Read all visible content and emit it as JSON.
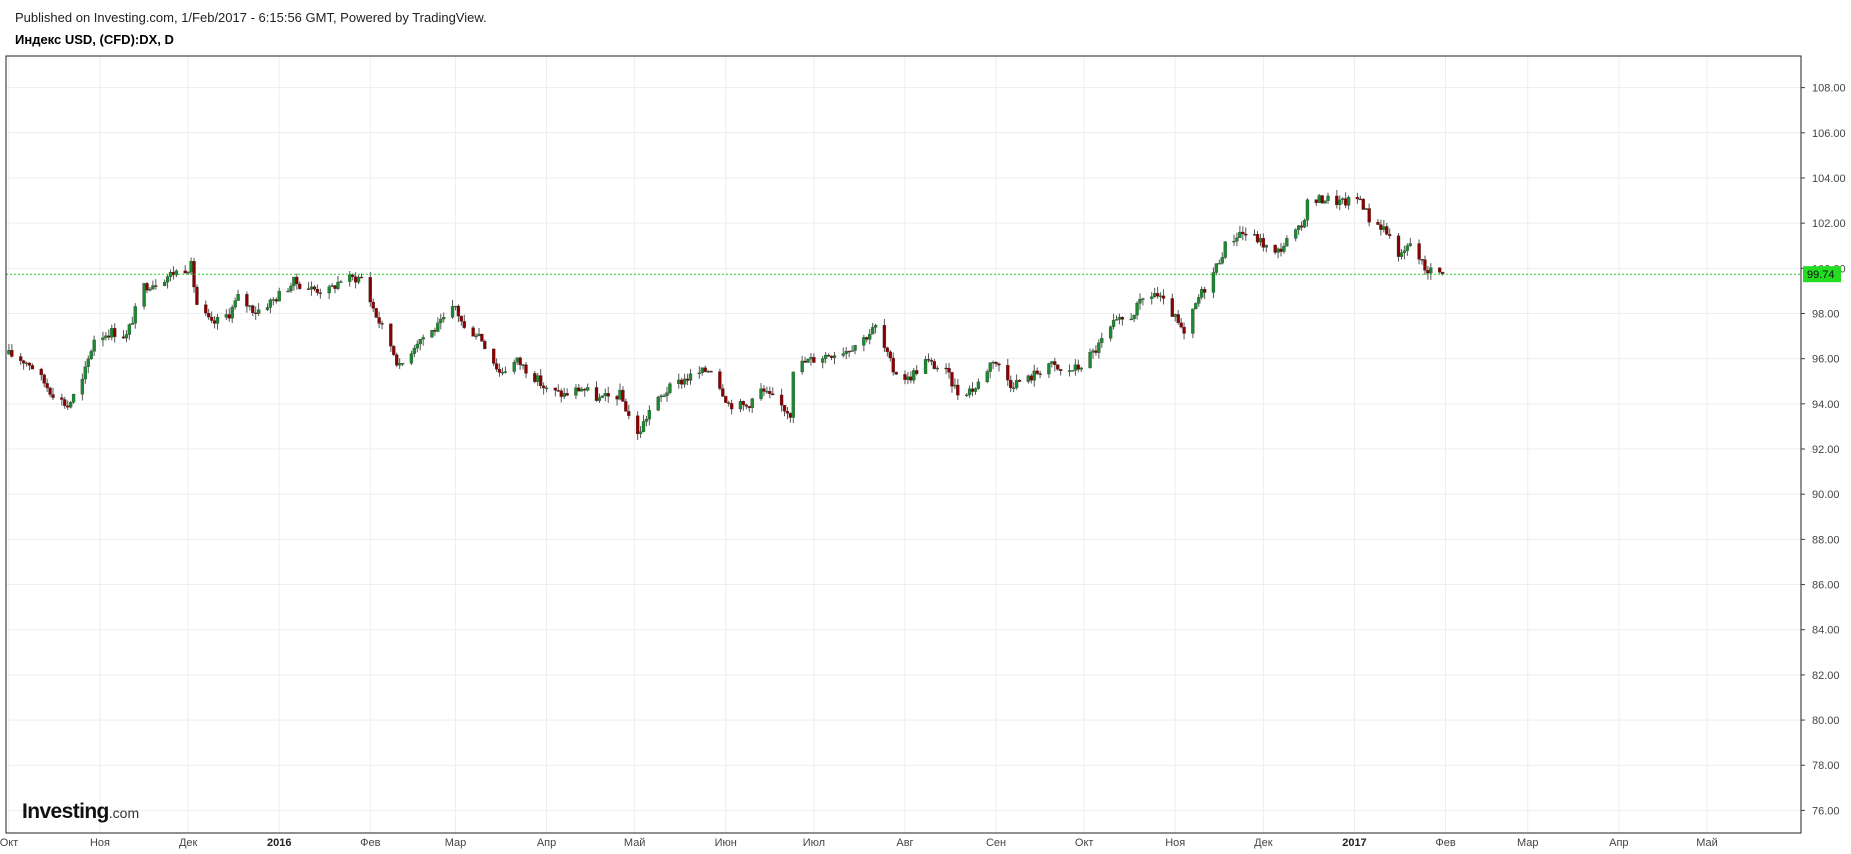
{
  "header": {
    "published": "Published on Investing.com, 1/Feb/2017 - 6:15:56 GMT, Powered by TradingView.",
    "symbol": "Индекс USD, (CFD):DX, D"
  },
  "logo": {
    "brand": "Investing",
    "domain": ".com"
  },
  "colors": {
    "up": "#1a8a2e",
    "down": "#8b0000",
    "wick": "#555555",
    "grid": "#eeeeee",
    "last_line": "#22cc22",
    "last_label_bg": "#22dd22",
    "frame": "#222222"
  },
  "chart_data": {
    "type": "candlestick",
    "title": "Индекс USD, (CFD):DX, D",
    "last_price": 99.74,
    "last_price_label": "99.74",
    "ylim": [
      75.0,
      109.4
    ],
    "y_ticks": [
      "76.00",
      "78.00",
      "80.00",
      "82.00",
      "84.00",
      "86.00",
      "88.00",
      "90.00",
      "92.00",
      "94.00",
      "96.00",
      "98.00",
      "100.00",
      "102.00",
      "104.00",
      "106.00",
      "108.00"
    ],
    "x_ticks": [
      {
        "label": "Окт",
        "date": "2015-10-01"
      },
      {
        "label": "Ноя",
        "date": "2015-11-01"
      },
      {
        "label": "Дек",
        "date": "2015-12-01"
      },
      {
        "label": "2016",
        "date": "2016-01-01",
        "bold": true
      },
      {
        "label": "Фев",
        "date": "2016-02-01"
      },
      {
        "label": "Мар",
        "date": "2016-03-01"
      },
      {
        "label": "Апр",
        "date": "2016-04-01"
      },
      {
        "label": "Май",
        "date": "2016-05-01"
      },
      {
        "label": "Июн",
        "date": "2016-06-01"
      },
      {
        "label": "Июл",
        "date": "2016-07-01"
      },
      {
        "label": "Авг",
        "date": "2016-08-01"
      },
      {
        "label": "Сен",
        "date": "2016-09-01"
      },
      {
        "label": "Окт",
        "date": "2016-10-01"
      },
      {
        "label": "Ноя",
        "date": "2016-11-01"
      },
      {
        "label": "Дек",
        "date": "2016-12-01"
      },
      {
        "label": "2017",
        "date": "2017-01-01",
        "bold": true
      },
      {
        "label": "Фев",
        "date": "2017-02-01"
      },
      {
        "label": "Мар",
        "date": "2017-03-01"
      },
      {
        "label": "Апр",
        "date": "2017-04-01"
      },
      {
        "label": "Май",
        "date": "2017-05-01"
      }
    ],
    "close_by_date": [
      [
        "2015-10-01",
        96.2
      ],
      [
        "2015-10-08",
        95.8
      ],
      [
        "2015-10-15",
        94.6
      ],
      [
        "2015-10-21",
        93.9
      ],
      [
        "2015-10-26",
        95.0
      ],
      [
        "2015-10-30",
        96.9
      ],
      [
        "2015-11-05",
        97.2
      ],
      [
        "2015-11-10",
        97.0
      ],
      [
        "2015-11-16",
        99.2
      ],
      [
        "2015-11-20",
        99.4
      ],
      [
        "2015-11-26",
        99.8
      ],
      [
        "2015-12-02",
        100.1
      ],
      [
        "2015-12-04",
        98.4
      ],
      [
        "2015-12-09",
        97.5
      ],
      [
        "2015-12-15",
        98.0
      ],
      [
        "2015-12-18",
        98.7
      ],
      [
        "2015-12-24",
        98.1
      ],
      [
        "2015-12-30",
        98.6
      ],
      [
        "2016-01-06",
        99.4
      ],
      [
        "2016-01-12",
        99.1
      ],
      [
        "2016-01-18",
        99.0
      ],
      [
        "2016-01-22",
        99.5
      ],
      [
        "2016-01-29",
        99.6
      ],
      [
        "2016-02-03",
        97.9
      ],
      [
        "2016-02-08",
        96.6
      ],
      [
        "2016-02-11",
        95.6
      ],
      [
        "2016-02-17",
        96.8
      ],
      [
        "2016-02-24",
        97.4
      ],
      [
        "2016-03-01",
        98.3
      ],
      [
        "2016-03-04",
        97.3
      ],
      [
        "2016-03-09",
        97.1
      ],
      [
        "2016-03-16",
        95.4
      ],
      [
        "2016-03-22",
        95.9
      ],
      [
        "2016-03-28",
        95.2
      ],
      [
        "2016-04-01",
        94.6
      ],
      [
        "2016-04-07",
        94.4
      ],
      [
        "2016-04-13",
        94.7
      ],
      [
        "2016-04-19",
        94.2
      ],
      [
        "2016-04-26",
        94.4
      ],
      [
        "2016-05-02",
        92.6
      ],
      [
        "2016-05-06",
        93.7
      ],
      [
        "2016-05-12",
        94.6
      ],
      [
        "2016-05-18",
        95.1
      ],
      [
        "2016-05-24",
        95.4
      ],
      [
        "2016-05-27",
        95.6
      ],
      [
        "2016-06-02",
        94.0
      ],
      [
        "2016-06-08",
        93.9
      ],
      [
        "2016-06-13",
        94.6
      ],
      [
        "2016-06-17",
        94.2
      ],
      [
        "2016-06-23",
        93.6
      ],
      [
        "2016-06-24",
        95.6
      ],
      [
        "2016-06-29",
        95.9
      ],
      [
        "2016-07-06",
        96.2
      ],
      [
        "2016-07-12",
        96.4
      ],
      [
        "2016-07-18",
        96.9
      ],
      [
        "2016-07-22",
        97.4
      ],
      [
        "2016-07-28",
        95.5
      ],
      [
        "2016-08-02",
        95.1
      ],
      [
        "2016-08-08",
        95.9
      ],
      [
        "2016-08-15",
        95.4
      ],
      [
        "2016-08-19",
        94.5
      ],
      [
        "2016-08-25",
        94.7
      ],
      [
        "2016-08-31",
        96.0
      ],
      [
        "2016-09-06",
        94.9
      ],
      [
        "2016-09-12",
        95.1
      ],
      [
        "2016-09-19",
        95.8
      ],
      [
        "2016-09-23",
        95.4
      ],
      [
        "2016-09-29",
        95.6
      ],
      [
        "2016-10-05",
        96.4
      ],
      [
        "2016-10-11",
        97.5
      ],
      [
        "2016-10-17",
        97.9
      ],
      [
        "2016-10-21",
        98.6
      ],
      [
        "2016-10-25",
        98.9
      ],
      [
        "2016-10-31",
        98.0
      ],
      [
        "2016-11-04",
        97.0
      ],
      [
        "2016-11-09",
        98.7
      ],
      [
        "2016-11-14",
        99.8
      ],
      [
        "2016-11-18",
        101.0
      ],
      [
        "2016-11-23",
        101.6
      ],
      [
        "2016-11-29",
        101.3
      ],
      [
        "2016-12-05",
        100.6
      ],
      [
        "2016-12-09",
        101.2
      ],
      [
        "2016-12-14",
        101.8
      ],
      [
        "2016-12-16",
        102.9
      ],
      [
        "2016-12-22",
        103.1
      ],
      [
        "2016-12-28",
        102.9
      ],
      [
        "2017-01-03",
        103.1
      ],
      [
        "2017-01-06",
        102.2
      ],
      [
        "2017-01-11",
        101.8
      ],
      [
        "2017-01-17",
        100.5
      ],
      [
        "2017-01-20",
        101.1
      ],
      [
        "2017-01-25",
        100.0
      ],
      [
        "2017-01-31",
        99.74
      ]
    ]
  }
}
